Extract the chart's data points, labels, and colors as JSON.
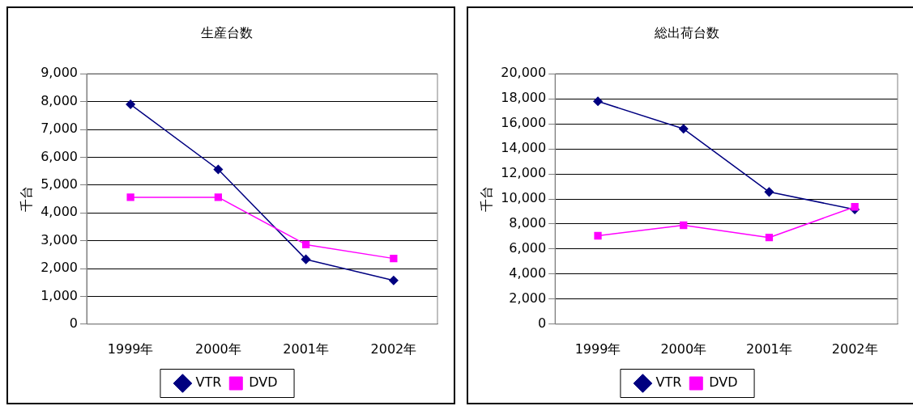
{
  "chart_data": [
    {
      "type": "line",
      "title": "生産台数",
      "ylabel": "千台",
      "categories": [
        "1999年",
        "2000年",
        "2001年",
        "2002年"
      ],
      "series": [
        {
          "name": "VTR",
          "color": "#000080",
          "marker": "diamond",
          "values": [
            7900,
            5560,
            2330,
            1570
          ]
        },
        {
          "name": "DVD",
          "color": "#ff00ff",
          "marker": "square",
          "values": [
            4560,
            4560,
            2860,
            2360
          ]
        }
      ],
      "ylim": [
        0,
        9000
      ],
      "yticks": [
        0,
        {
          "value": 1000,
          "label": "1,000"
        },
        {
          "value": 2000,
          "label": "2,000"
        },
        {
          "value": 3000,
          "label": "3,000"
        },
        {
          "value": 4000,
          "label": "4,000"
        },
        {
          "value": 5000,
          "label": "5,000"
        },
        {
          "value": 6000,
          "label": "6,000"
        },
        {
          "value": 7000,
          "label": "7,000"
        },
        {
          "value": 8000,
          "label": "8,000"
        },
        {
          "value": 9000,
          "label": "9,000"
        }
      ],
      "grid": "y",
      "legend": "bottom"
    },
    {
      "type": "line",
      "title": "総出荷台数",
      "ylabel": "千台",
      "categories": [
        "1999年",
        "2000年",
        "2001年",
        "2002年"
      ],
      "series": [
        {
          "name": "VTR",
          "color": "#000080",
          "marker": "diamond",
          "values": [
            17800,
            15600,
            10560,
            9160
          ]
        },
        {
          "name": "DVD",
          "color": "#ff00ff",
          "marker": "square",
          "values": [
            7060,
            7900,
            6920,
            9370
          ]
        }
      ],
      "ylim": [
        0,
        20000
      ],
      "yticks": [
        0,
        {
          "value": 2000,
          "label": "2,000"
        },
        {
          "value": 4000,
          "label": "4,000"
        },
        {
          "value": 6000,
          "label": "6,000"
        },
        {
          "value": 8000,
          "label": "8,000"
        },
        {
          "value": 10000,
          "label": "10,000"
        },
        {
          "value": 12000,
          "label": "12,000"
        },
        {
          "value": 14000,
          "label": "14,000"
        },
        {
          "value": 16000,
          "label": "16,000"
        },
        {
          "value": 18000,
          "label": "18,000"
        },
        {
          "value": 20000,
          "label": "20,000"
        }
      ],
      "grid": "y",
      "legend": "bottom"
    }
  ]
}
